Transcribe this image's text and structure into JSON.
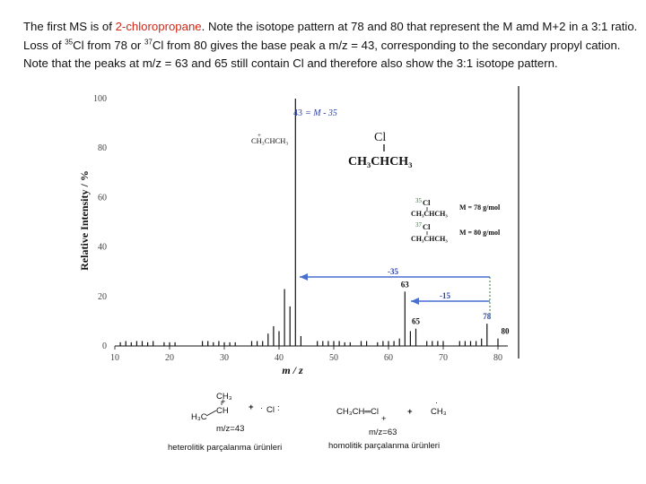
{
  "intro": {
    "part1": "The first MS is of ",
    "compound": "2-chloropropane",
    "part2": ". Note the isotope pattern at 78 and 80 that represent the M amd M+2 in a 3:1 ratio. Loss of ",
    "iso35": "35",
    "part3": "Cl from 78 or ",
    "iso37": "37",
    "part4": "Cl from 80 gives the base peak a m/z = 43, corresponding to the secondary propyl cation. Note that the peaks at m/z = 63 and 65 still contain Cl and therefore also show the 3:1 isotope pattern."
  },
  "colors": {
    "accent_red": "#cc2a1a",
    "annot_blue": "#2a3fa8",
    "annot_green": "#2e7d32",
    "bars": "#111111"
  },
  "chart_data": {
    "type": "bar",
    "xlabel": "m / z",
    "ylabel": "Relative Intensity / %",
    "xlim": [
      10,
      82
    ],
    "ylim": [
      0,
      100
    ],
    "x_ticks": [
      10,
      20,
      30,
      40,
      50,
      60,
      70,
      80
    ],
    "y_ticks": [
      0,
      20,
      40,
      60,
      80,
      100
    ],
    "x_tick_labels": [
      "10",
      "20",
      "30",
      "40",
      "50",
      "60",
      "70",
      "80"
    ],
    "y_tick_labels": [
      "0",
      "20",
      "40",
      "60",
      "80",
      "100"
    ],
    "peaks": [
      {
        "mz": 11,
        "i": 1.5
      },
      {
        "mz": 12,
        "i": 2
      },
      {
        "mz": 13,
        "i": 1.5
      },
      {
        "mz": 14,
        "i": 2
      },
      {
        "mz": 15,
        "i": 2
      },
      {
        "mz": 16,
        "i": 1.5
      },
      {
        "mz": 17,
        "i": 2
      },
      {
        "mz": 19,
        "i": 1.5
      },
      {
        "mz": 20,
        "i": 1.5
      },
      {
        "mz": 21,
        "i": 1.5
      },
      {
        "mz": 26,
        "i": 2
      },
      {
        "mz": 27,
        "i": 2
      },
      {
        "mz": 28,
        "i": 1.5
      },
      {
        "mz": 29,
        "i": 2
      },
      {
        "mz": 30,
        "i": 1.5
      },
      {
        "mz": 31,
        "i": 1.5
      },
      {
        "mz": 32,
        "i": 1.5
      },
      {
        "mz": 35,
        "i": 2
      },
      {
        "mz": 36,
        "i": 2
      },
      {
        "mz": 37,
        "i": 2
      },
      {
        "mz": 38,
        "i": 5
      },
      {
        "mz": 39,
        "i": 8
      },
      {
        "mz": 40,
        "i": 6
      },
      {
        "mz": 41,
        "i": 23
      },
      {
        "mz": 42,
        "i": 16
      },
      {
        "mz": 43,
        "i": 100
      },
      {
        "mz": 44,
        "i": 4
      },
      {
        "mz": 47,
        "i": 2
      },
      {
        "mz": 48,
        "i": 2
      },
      {
        "mz": 49,
        "i": 2
      },
      {
        "mz": 50,
        "i": 2
      },
      {
        "mz": 51,
        "i": 2
      },
      {
        "mz": 52,
        "i": 1.5
      },
      {
        "mz": 53,
        "i": 1.5
      },
      {
        "mz": 55,
        "i": 2
      },
      {
        "mz": 56,
        "i": 2
      },
      {
        "mz": 58,
        "i": 1.5
      },
      {
        "mz": 59,
        "i": 2
      },
      {
        "mz": 60,
        "i": 2
      },
      {
        "mz": 61,
        "i": 2
      },
      {
        "mz": 62,
        "i": 3
      },
      {
        "mz": 63,
        "i": 22
      },
      {
        "mz": 64,
        "i": 6
      },
      {
        "mz": 65,
        "i": 7
      },
      {
        "mz": 67,
        "i": 2
      },
      {
        "mz": 68,
        "i": 2
      },
      {
        "mz": 69,
        "i": 2
      },
      {
        "mz": 70,
        "i": 2
      },
      {
        "mz": 73,
        "i": 2
      },
      {
        "mz": 74,
        "i": 2
      },
      {
        "mz": 75,
        "i": 2
      },
      {
        "mz": 76,
        "i": 2
      },
      {
        "mz": 77,
        "i": 3
      },
      {
        "mz": 78,
        "i": 9
      },
      {
        "mz": 80,
        "i": 3
      }
    ],
    "peak_labels": [
      {
        "text": "63",
        "mz": 63
      },
      {
        "text": "65",
        "mz": 65
      },
      {
        "text": "78",
        "mz": 78
      },
      {
        "text": "80",
        "mz": 80
      }
    ],
    "annotations": {
      "base_peak": {
        "mass": "43",
        "label": "= M - 35"
      },
      "cation": "CH₃CHCH₃",
      "structure_cl": "Cl",
      "structure_chain": "CH₃CHCH₃",
      "iso35_formula": "CH₃CHCH₃",
      "iso35_mass": "M = 78 g/mol",
      "iso37_formula": "CH₃CHCH₃",
      "iso37_mass": "M = 80 g/mol",
      "loss_35": "-35",
      "loss_15": "-15"
    },
    "legend": "none",
    "grid": false
  },
  "bottom": {
    "ch3": "CH₃",
    "ch": "CH",
    "h3c": "H₃C",
    "plus1": "+",
    "cl_radical": "Cl",
    "mz43": "m/z=43",
    "heterolytic": "heterolitik parçalanma ürünleri",
    "vinyl": "CH₃CH═Cl",
    "plus2": "+",
    "ch3_right": "CH₃",
    "mz63": "m/z=63",
    "homolytic": "homolitik parçalanma ürünleri"
  }
}
